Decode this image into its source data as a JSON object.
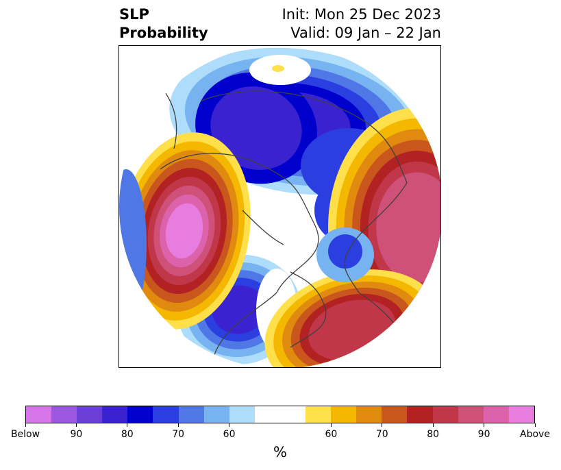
{
  "header": {
    "title_line1": "SLP",
    "title_line2": "Probability",
    "init_text": "Init: Mon 25 Dec 2023",
    "valid_text": "Valid: 09 Jan – 22 Jan"
  },
  "colorbar": {
    "unit_label": "%",
    "colors": [
      "#d675e8",
      "#9b57e0",
      "#6a3fd8",
      "#3a22d0",
      "#0000cd",
      "#2b3ee0",
      "#4f77e6",
      "#77b3f0",
      "#aedcfb",
      "#ffffff",
      "#ffffff",
      "#ffe04a",
      "#f5b800",
      "#e08a10",
      "#c9561c",
      "#b22222",
      "#c0374a",
      "#cf5079",
      "#dc63ab",
      "#e87de0"
    ],
    "tick_labels": [
      "Below",
      "90",
      "80",
      "70",
      "60",
      "60",
      "70",
      "80",
      "90",
      "Above"
    ],
    "tick_fractions": [
      0,
      0.1,
      0.2,
      0.3,
      0.4,
      0.6,
      0.7,
      0.8,
      0.9,
      1.0
    ]
  },
  "map": {
    "projection": "north-polar-stereographic",
    "below_colors": {
      "b95": "#6a3fd8",
      "b85": "#3a22d0",
      "b80": "#0000cd",
      "b75": "#2b3ee0",
      "b70": "#4f77e6",
      "b65": "#77b3f0",
      "b60": "#aedcfb"
    },
    "above_colors": {
      "a60": "#ffe04a",
      "a65": "#f5b800",
      "a70": "#e08a10",
      "a75": "#c9561c",
      "a80": "#b22222",
      "a85": "#c0374a",
      "a90": "#cf5079",
      "a95": "#dc63ab",
      "a100": "#e87de0"
    },
    "coastline_color": "#404040"
  }
}
